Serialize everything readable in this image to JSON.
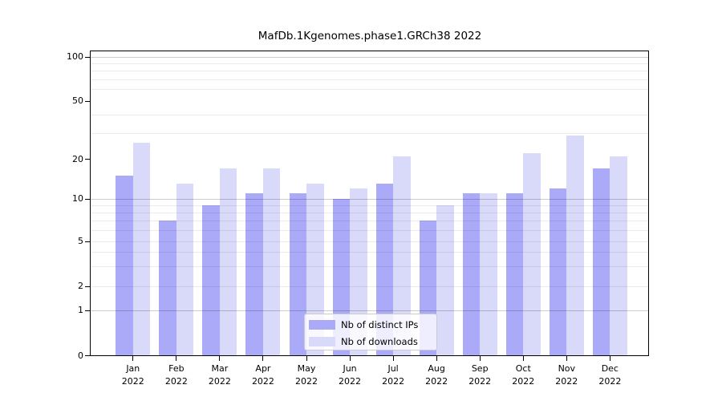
{
  "title": "MafDb.1Kgenomes.phase1.GRCh38 2022",
  "chart_data": {
    "type": "bar",
    "title": "MafDb.1Kgenomes.phase1.GRCh38 2022",
    "xlabel": "",
    "ylabel": "",
    "categories": [
      "Jan",
      "Feb",
      "Mar",
      "Apr",
      "May",
      "Jun",
      "Jul",
      "Aug",
      "Sep",
      "Oct",
      "Nov",
      "Dec"
    ],
    "category_year": "2022",
    "series": [
      {
        "name": "Nb of distinct IPs",
        "color": "#aaaaf9",
        "values": [
          15,
          7,
          9,
          11,
          11,
          10,
          13,
          7,
          11,
          11,
          12,
          17
        ]
      },
      {
        "name": "Nb of downloads",
        "color": "#d9d9fa",
        "values": [
          26,
          13,
          17,
          17,
          13,
          12,
          21,
          9,
          11,
          22,
          29,
          21
        ]
      }
    ],
    "yscale": "log-like (0,1,2,5,10,20,50,100)",
    "ylim": [
      0,
      110
    ],
    "ytick_labels": [
      "0",
      "1",
      "2",
      "5",
      "10",
      "20",
      "50",
      "100"
    ],
    "ytick_values": [
      0,
      1,
      2,
      5,
      10,
      20,
      50,
      100
    ],
    "major_grid_values": [
      1,
      10,
      100
    ],
    "minor_grid_values": [
      2,
      5,
      3,
      4,
      6,
      7,
      8,
      9,
      30,
      40,
      60,
      70,
      80,
      90
    ],
    "grid": true,
    "legend_position": "lower center"
  },
  "legend": {
    "items": [
      {
        "label": "Nb of distinct IPs",
        "color": "#aaaaf9"
      },
      {
        "label": "Nb of downloads",
        "color": "#d9d9fa"
      }
    ]
  }
}
